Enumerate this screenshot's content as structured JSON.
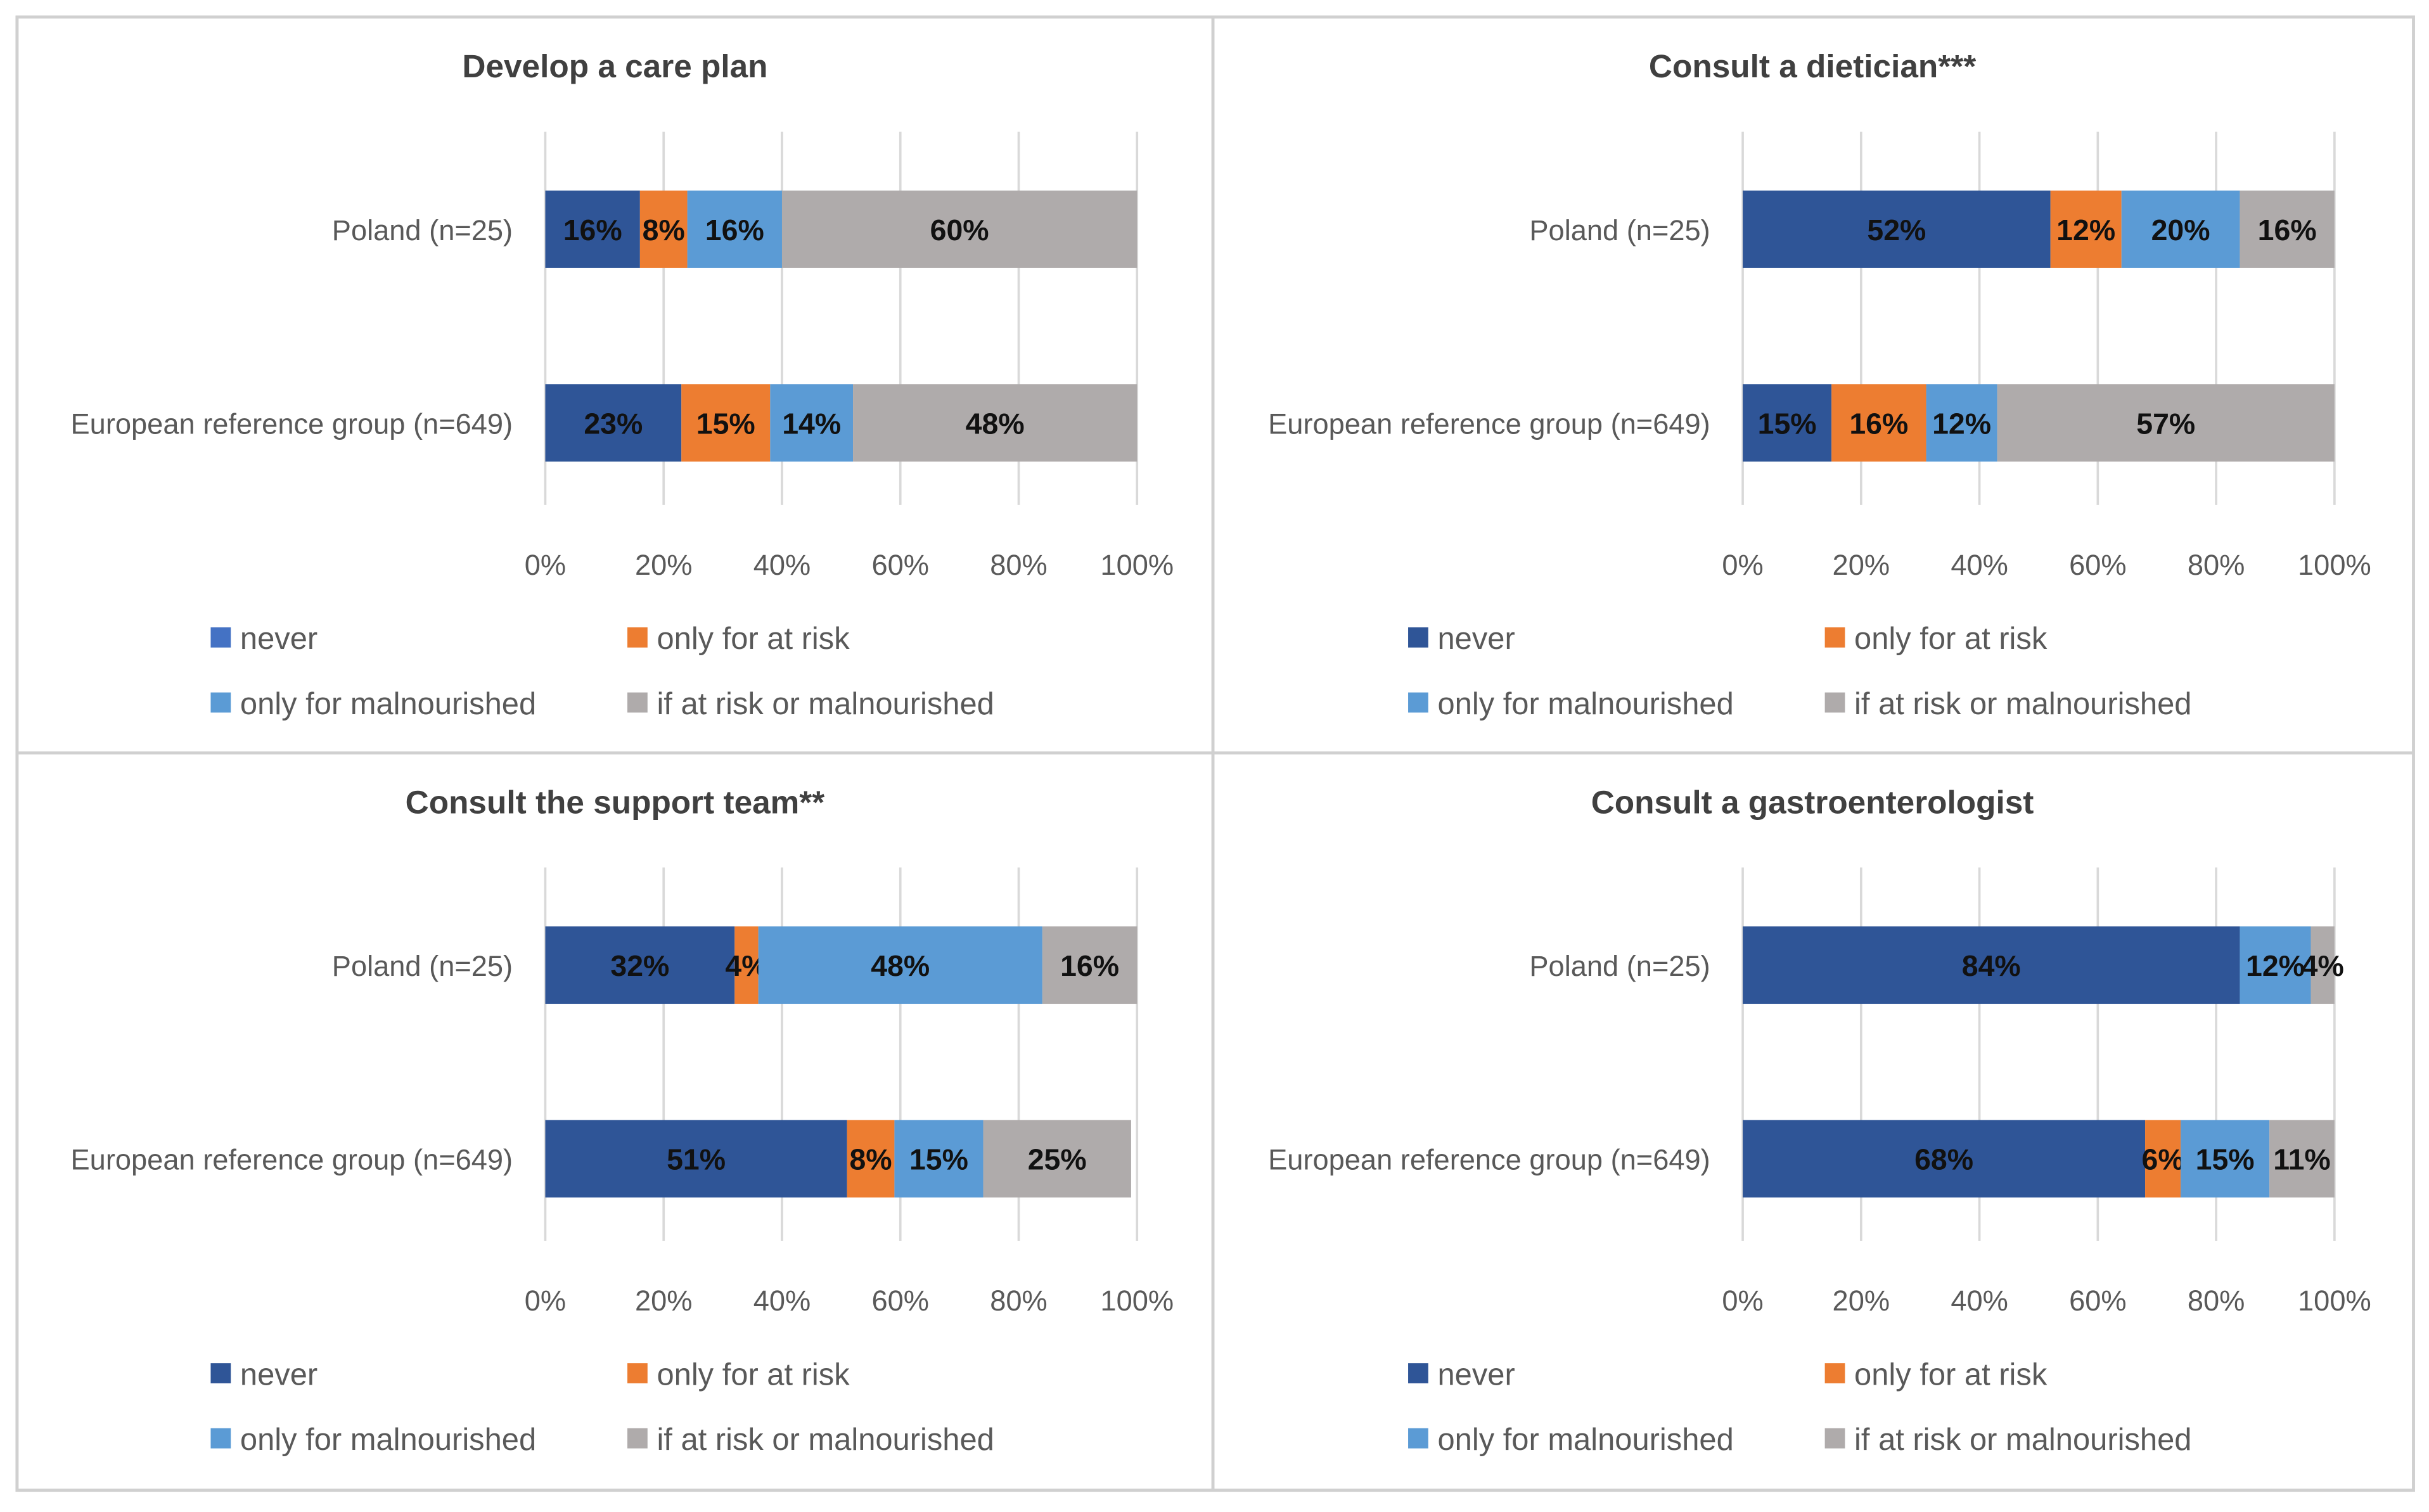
{
  "colors": {
    "never": "#2f5597",
    "never_legend_first": "#4472c4",
    "only_for_at_risk": "#ed7d31",
    "only_for_malnourished": "#5b9bd5",
    "if_at_risk_or_malnourished": "#afabab",
    "grid": "#d9d9d9",
    "border": "#d0d0d0"
  },
  "chart_data": [
    {
      "type": "bar",
      "orientation": "horizontal-stacked-100",
      "title": "Develop a care plan",
      "categories": [
        "Poland (n=25)",
        "European reference group (n=649)"
      ],
      "series": [
        {
          "name": "never",
          "values": [
            16,
            23
          ]
        },
        {
          "name": "only for at risk",
          "values": [
            8,
            15
          ]
        },
        {
          "name": "only for malnourished",
          "values": [
            16,
            14
          ]
        },
        {
          "name": "if at risk or malnourished",
          "values": [
            60,
            48
          ]
        }
      ],
      "xticks": [
        "0%",
        "20%",
        "40%",
        "60%",
        "80%",
        "100%"
      ],
      "xlim": [
        0,
        100
      ],
      "grid": true,
      "legend": "bottom"
    },
    {
      "type": "bar",
      "orientation": "horizontal-stacked-100",
      "title": "Consult a dietician***",
      "categories": [
        "Poland (n=25)",
        "European reference group (n=649)"
      ],
      "series": [
        {
          "name": "never",
          "values": [
            52,
            15
          ]
        },
        {
          "name": "only for at risk",
          "values": [
            12,
            16
          ]
        },
        {
          "name": "only for malnourished",
          "values": [
            20,
            12
          ]
        },
        {
          "name": "if at risk or malnourished",
          "values": [
            16,
            57
          ]
        }
      ],
      "xticks": [
        "0%",
        "20%",
        "40%",
        "60%",
        "80%",
        "100%"
      ],
      "xlim": [
        0,
        100
      ],
      "grid": true,
      "legend": "bottom"
    },
    {
      "type": "bar",
      "orientation": "horizontal-stacked-100",
      "title": "Consult the support team**",
      "categories": [
        "Poland (n=25)",
        "European reference group (n=649)"
      ],
      "series": [
        {
          "name": "never",
          "values": [
            32,
            51
          ]
        },
        {
          "name": "only for at risk",
          "values": [
            4,
            8
          ]
        },
        {
          "name": "only for malnourished",
          "values": [
            48,
            15
          ]
        },
        {
          "name": "if at risk or malnourished",
          "values": [
            16,
            25
          ]
        }
      ],
      "xticks": [
        "0%",
        "20%",
        "40%",
        "60%",
        "80%",
        "100%"
      ],
      "xlim": [
        0,
        100
      ],
      "grid": true,
      "legend": "bottom"
    },
    {
      "type": "bar",
      "orientation": "horizontal-stacked-100",
      "title": "Consult a gastroenterologist",
      "categories": [
        "Poland (n=25)",
        "European reference group (n=649)"
      ],
      "series": [
        {
          "name": "never",
          "values": [
            84,
            68
          ]
        },
        {
          "name": "only for at risk",
          "values": [
            0,
            6
          ]
        },
        {
          "name": "only for malnourished",
          "values": [
            12,
            15
          ]
        },
        {
          "name": "if at risk or malnourished",
          "values": [
            4,
            11
          ]
        }
      ],
      "xticks": [
        "0%",
        "20%",
        "40%",
        "60%",
        "80%",
        "100%"
      ],
      "xlim": [
        0,
        100
      ],
      "grid": true,
      "legend": "bottom"
    }
  ]
}
